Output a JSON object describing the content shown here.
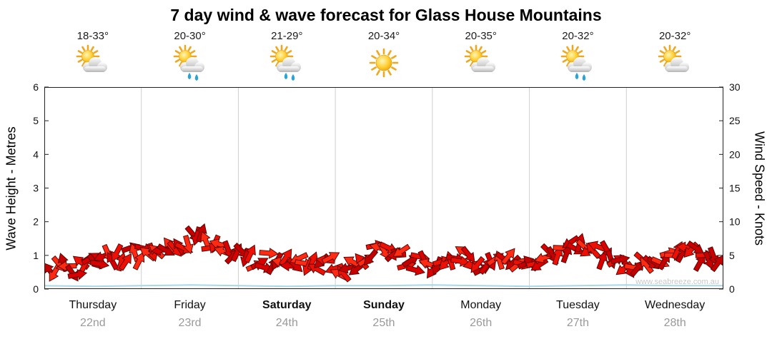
{
  "watermark": "www.seabreeze.com.au",
  "days": [
    {
      "name": "Thursday",
      "date": "22nd",
      "temp": "18-33°",
      "icon": "partly-cloudy",
      "bold": false
    },
    {
      "name": "Friday",
      "date": "23rd",
      "temp": "20-30°",
      "icon": "showers",
      "bold": false
    },
    {
      "name": "Saturday",
      "date": "24th",
      "temp": "21-29°",
      "icon": "showers",
      "bold": true
    },
    {
      "name": "Sunday",
      "date": "25th",
      "temp": "20-34°",
      "icon": "sunny",
      "bold": true
    },
    {
      "name": "Monday",
      "date": "26th",
      "temp": "20-35°",
      "icon": "partly-cloudy",
      "bold": false
    },
    {
      "name": "Tuesday",
      "date": "27th",
      "temp": "20-32°",
      "icon": "showers",
      "bold": false
    },
    {
      "name": "Wednesday",
      "date": "28th",
      "temp": "20-32°",
      "icon": "partly-cloudy",
      "bold": false
    }
  ],
  "chart_data": {
    "type": "line",
    "title": "7 day wind & wave forecast for Glass House Mountains",
    "x_categories": [
      "Thursday 22nd",
      "Friday 23rd",
      "Saturday 24th",
      "Sunday 25th",
      "Monday 26th",
      "Tuesday 27th",
      "Wednesday 28th"
    ],
    "y_left": {
      "label": "Wave Height - Metres",
      "range": [
        0,
        6
      ],
      "ticks": [
        0,
        1,
        2,
        3,
        4,
        5,
        6
      ]
    },
    "y_right": {
      "label": "Wind Speed - Knots",
      "range": [
        0,
        30
      ],
      "ticks": [
        0,
        5,
        10,
        15,
        20,
        25,
        30
      ]
    },
    "grid": "vertical-lines-at-day-boundaries",
    "legend": "none",
    "series": [
      {
        "name": "Wind Speed",
        "axis": "right",
        "units": "knots",
        "style": "red-wind-arrows",
        "color": "#e00000",
        "points_per_day": 8,
        "values": [
          3,
          3.5,
          3,
          4,
          4.5,
          5,
          4.5,
          5.5,
          5,
          5.5,
          6,
          6.5,
          7.5,
          7,
          6,
          5,
          4.5,
          4,
          4.5,
          4,
          4.5,
          4,
          3.5,
          4,
          3,
          3.5,
          4.5,
          6,
          5.5,
          4.5,
          3.5,
          4,
          4,
          4.5,
          5,
          4.5,
          4,
          4.5,
          4,
          3.5,
          4,
          5,
          5.5,
          6,
          6.5,
          5.5,
          4.5,
          4,
          3.5,
          3,
          4,
          4.5,
          6,
          5.5,
          4,
          4.5
        ]
      },
      {
        "name": "Wave Height",
        "axis": "left",
        "units": "metres",
        "style": "line",
        "color": "#a6d9ea",
        "values": [
          0.1,
          0.08,
          0.1,
          0.12,
          0.1,
          0.08,
          0.1,
          0.1,
          0.12,
          0.1,
          0.08,
          0.1,
          0.12,
          0.1,
          0.1
        ]
      }
    ]
  }
}
